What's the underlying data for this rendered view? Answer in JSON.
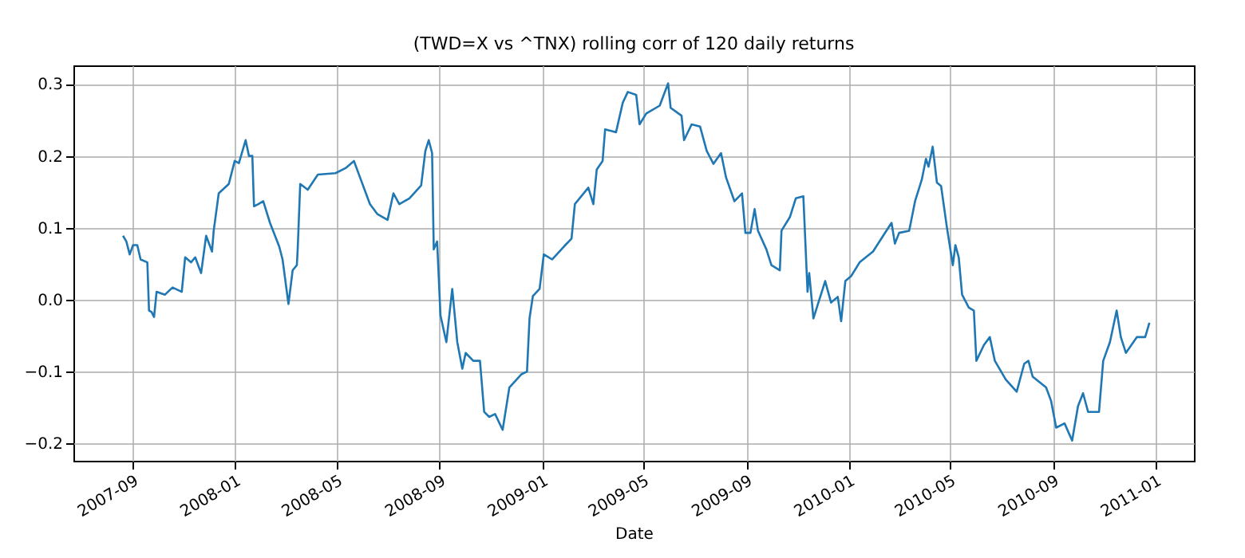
{
  "chart_data": {
    "type": "line",
    "title": "(TWD=X vs ^TNX) rolling corr of 120 daily returns",
    "xlabel": "Date",
    "x": [
      "2007-08-21",
      "2007-08-25",
      "2007-08-29",
      "2007-09-02",
      "2007-09-07",
      "2007-09-11",
      "2007-09-19",
      "2007-09-21",
      "2007-09-24",
      "2007-09-27",
      "2007-09-30",
      "2007-10-10",
      "2007-10-19",
      "2007-10-30",
      "2007-11-03",
      "2007-11-10",
      "2007-11-15",
      "2007-11-22",
      "2007-11-28",
      "2007-12-05",
      "2007-12-07",
      "2007-12-13",
      "2007-12-25",
      "2008-01-01",
      "2008-01-06",
      "2008-01-14",
      "2008-01-18",
      "2008-01-22",
      "2008-01-24",
      "2008-01-29",
      "2008-02-04",
      "2008-02-12",
      "2008-02-23",
      "2008-02-27",
      "2008-03-05",
      "2008-03-10",
      "2008-03-15",
      "2008-03-16",
      "2008-03-19",
      "2008-03-28",
      "2008-04-09",
      "2008-04-30",
      "2008-05-12",
      "2008-05-22",
      "2008-05-28",
      "2008-06-10",
      "2008-06-19",
      "2008-07-01",
      "2008-07-08",
      "2008-07-15",
      "2008-07-27",
      "2008-08-10",
      "2008-08-15",
      "2008-08-19",
      "2008-08-23",
      "2008-08-25",
      "2008-08-29",
      "2008-09-02",
      "2008-09-09",
      "2008-09-16",
      "2008-09-22",
      "2008-09-28",
      "2008-10-02",
      "2008-10-11",
      "2008-10-19",
      "2008-10-24",
      "2008-10-30",
      "2008-11-06",
      "2008-11-15",
      "2008-11-23",
      "2008-12-07",
      "2008-12-14",
      "2008-12-17",
      "2008-12-21",
      "2008-12-29",
      "2009-01-03",
      "2009-01-13",
      "2009-01-27",
      "2009-02-05",
      "2009-02-09",
      "2009-02-25",
      "2009-03-03",
      "2009-03-07",
      "2009-03-14",
      "2009-03-17",
      "2009-03-30",
      "2009-04-07",
      "2009-04-13",
      "2009-04-23",
      "2009-04-27",
      "2009-05-05",
      "2009-05-21",
      "2009-05-31",
      "2009-06-03",
      "2009-06-16",
      "2009-06-19",
      "2009-06-28",
      "2009-07-08",
      "2009-07-16",
      "2009-07-24",
      "2009-08-02",
      "2009-08-08",
      "2009-08-18",
      "2009-08-27",
      "2009-08-31",
      "2009-09-06",
      "2009-09-11",
      "2009-09-15",
      "2009-09-25",
      "2009-10-01",
      "2009-10-11",
      "2009-10-13",
      "2009-10-23",
      "2009-10-30",
      "2009-11-08",
      "2009-11-13",
      "2009-11-15",
      "2009-11-20",
      "2009-12-04",
      "2009-12-11",
      "2009-12-19",
      "2009-12-23",
      "2009-12-28",
      "2010-01-04",
      "2010-01-14",
      "2010-01-30",
      "2010-02-11",
      "2010-02-21",
      "2010-02-25",
      "2010-03-02",
      "2010-03-14",
      "2010-03-21",
      "2010-03-29",
      "2010-04-03",
      "2010-04-06",
      "2010-04-11",
      "2010-04-16",
      "2010-04-21",
      "2010-04-28",
      "2010-05-05",
      "2010-05-08",
      "2010-05-12",
      "2010-05-16",
      "2010-05-24",
      "2010-05-30",
      "2010-06-02",
      "2010-06-11",
      "2010-06-18",
      "2010-06-24",
      "2010-07-07",
      "2010-07-20",
      "2010-07-29",
      "2010-08-03",
      "2010-08-08",
      "2010-08-24",
      "2010-08-30",
      "2010-09-05",
      "2010-09-15",
      "2010-09-24",
      "2010-10-01",
      "2010-10-07",
      "2010-10-13",
      "2010-10-26",
      "2010-10-31",
      "2010-11-08",
      "2010-11-16",
      "2010-11-21",
      "2010-11-27",
      "2010-12-10",
      "2010-12-20",
      "2010-12-25"
    ],
    "series": [
      {
        "color": "#1f77b4",
        "values": [
          0.089,
          0.081,
          0.063,
          0.076,
          0.076,
          0.056,
          0.052,
          -0.015,
          -0.017,
          -0.024,
          0.011,
          0.007,
          0.017,
          0.011,
          0.059,
          0.052,
          0.059,
          0.037,
          0.089,
          0.067,
          0.096,
          0.148,
          0.161,
          0.193,
          0.19,
          0.222,
          0.2,
          0.2,
          0.13,
          0.133,
          0.137,
          0.107,
          0.074,
          0.056,
          -0.006,
          0.041,
          0.048,
          0.07,
          0.161,
          0.153,
          0.174,
          0.176,
          0.183,
          0.193,
          0.174,
          0.133,
          0.119,
          0.111,
          0.148,
          0.133,
          0.141,
          0.159,
          0.207,
          0.222,
          0.204,
          0.07,
          0.081,
          -0.022,
          -0.059,
          0.015,
          -0.059,
          -0.096,
          -0.074,
          -0.085,
          -0.085,
          -0.156,
          -0.163,
          -0.159,
          -0.181,
          -0.122,
          -0.104,
          -0.1,
          -0.026,
          0.005,
          0.015,
          0.063,
          0.056,
          0.074,
          0.085,
          0.133,
          0.156,
          0.133,
          0.181,
          0.193,
          0.237,
          0.233,
          0.274,
          0.289,
          0.285,
          0.244,
          0.259,
          0.27,
          0.301,
          0.267,
          0.256,
          0.222,
          0.244,
          0.241,
          0.207,
          0.189,
          0.204,
          0.17,
          0.137,
          0.148,
          0.093,
          0.093,
          0.126,
          0.096,
          0.07,
          0.048,
          0.041,
          0.096,
          0.115,
          0.141,
          0.144,
          0.011,
          0.037,
          -0.026,
          0.026,
          -0.004,
          0.004,
          -0.03,
          0.026,
          0.033,
          0.052,
          0.067,
          0.089,
          0.107,
          0.078,
          0.093,
          0.096,
          0.137,
          0.167,
          0.196,
          0.185,
          0.213,
          0.163,
          0.158,
          0.1,
          0.048,
          0.076,
          0.059,
          0.007,
          -0.011,
          -0.015,
          -0.085,
          -0.063,
          -0.052,
          -0.085,
          -0.111,
          -0.128,
          -0.089,
          -0.085,
          -0.107,
          -0.122,
          -0.141,
          -0.178,
          -0.172,
          -0.196,
          -0.148,
          -0.13,
          -0.156,
          -0.156,
          -0.085,
          -0.059,
          -0.015,
          -0.052,
          -0.074,
          -0.052,
          -0.052,
          -0.032
        ]
      }
    ],
    "xlim": [
      "2007-06-23",
      "2011-02-16"
    ],
    "xticks": [
      "2007-09",
      "2008-01",
      "2008-05",
      "2008-09",
      "2009-01",
      "2009-05",
      "2009-09",
      "2010-01",
      "2010-05",
      "2010-09",
      "2011-01"
    ],
    "ylim": [
      -0.224,
      0.326
    ],
    "yticks": [
      {
        "value": -0.2,
        "label": "−0.2"
      },
      {
        "value": -0.1,
        "label": "−0.1"
      },
      {
        "value": 0,
        "label": "0.0"
      },
      {
        "value": 0.1,
        "label": "0.1"
      },
      {
        "value": 0.2,
        "label": "0.2"
      },
      {
        "value": 0.3,
        "label": "0.3"
      }
    ],
    "grid": true,
    "marker": "none",
    "line_style": "solid"
  }
}
